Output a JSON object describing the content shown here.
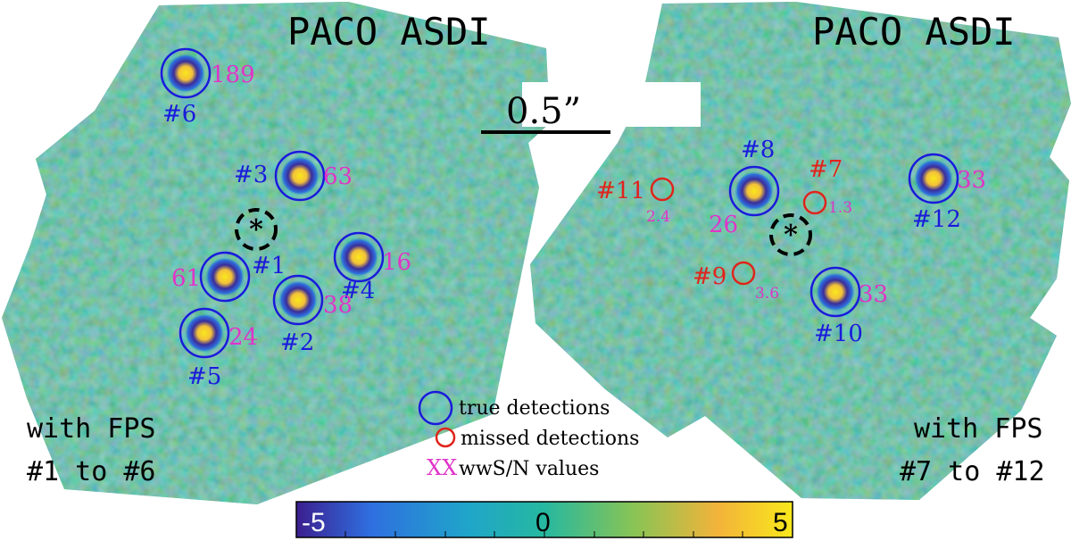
{
  "panels": [
    {
      "title": "PACO ASDI",
      "caption_line1": "with FPS",
      "caption_line2": "#1 to #6"
    },
    {
      "title": "PACO ASDI",
      "caption_line1": "with FPS",
      "caption_line2": "#7 to #12"
    }
  ],
  "scale_bar": {
    "label": "0.5”"
  },
  "detections_true": [
    {
      "id": "#6",
      "snr": "189"
    },
    {
      "id": "#3",
      "snr": "63"
    },
    {
      "id": "#1",
      "snr": "61"
    },
    {
      "id": "#4",
      "snr": "16"
    },
    {
      "id": "#2",
      "snr": "38"
    },
    {
      "id": "#5",
      "snr": "24"
    },
    {
      "id": "#8",
      "snr": "26"
    },
    {
      "id": "#12",
      "snr": "33"
    },
    {
      "id": "#10",
      "snr": "33"
    }
  ],
  "detections_missed": [
    {
      "id": "#11",
      "snr": "2.4"
    },
    {
      "id": "#7",
      "snr": "1.3"
    },
    {
      "id": "#9",
      "snr": "3.6"
    }
  ],
  "legend": {
    "true_label": "true detections",
    "missed_label": "missed detections",
    "snr_symbol": "XX",
    "snr_label": "wwS/N values"
  },
  "colorbar": {
    "min_label": "-5",
    "mid_label": "0",
    "max_label": "5",
    "colors": [
      "#3b1f8f",
      "#2f6fe0",
      "#1fa6c9",
      "#26b8a0",
      "#88c455",
      "#f3b33a",
      "#f9e81c"
    ]
  },
  "colors": {
    "true": "#1a1adc",
    "missed": "#e0241c",
    "snr": "#e034c8",
    "map_bg": "#29b0a6"
  }
}
